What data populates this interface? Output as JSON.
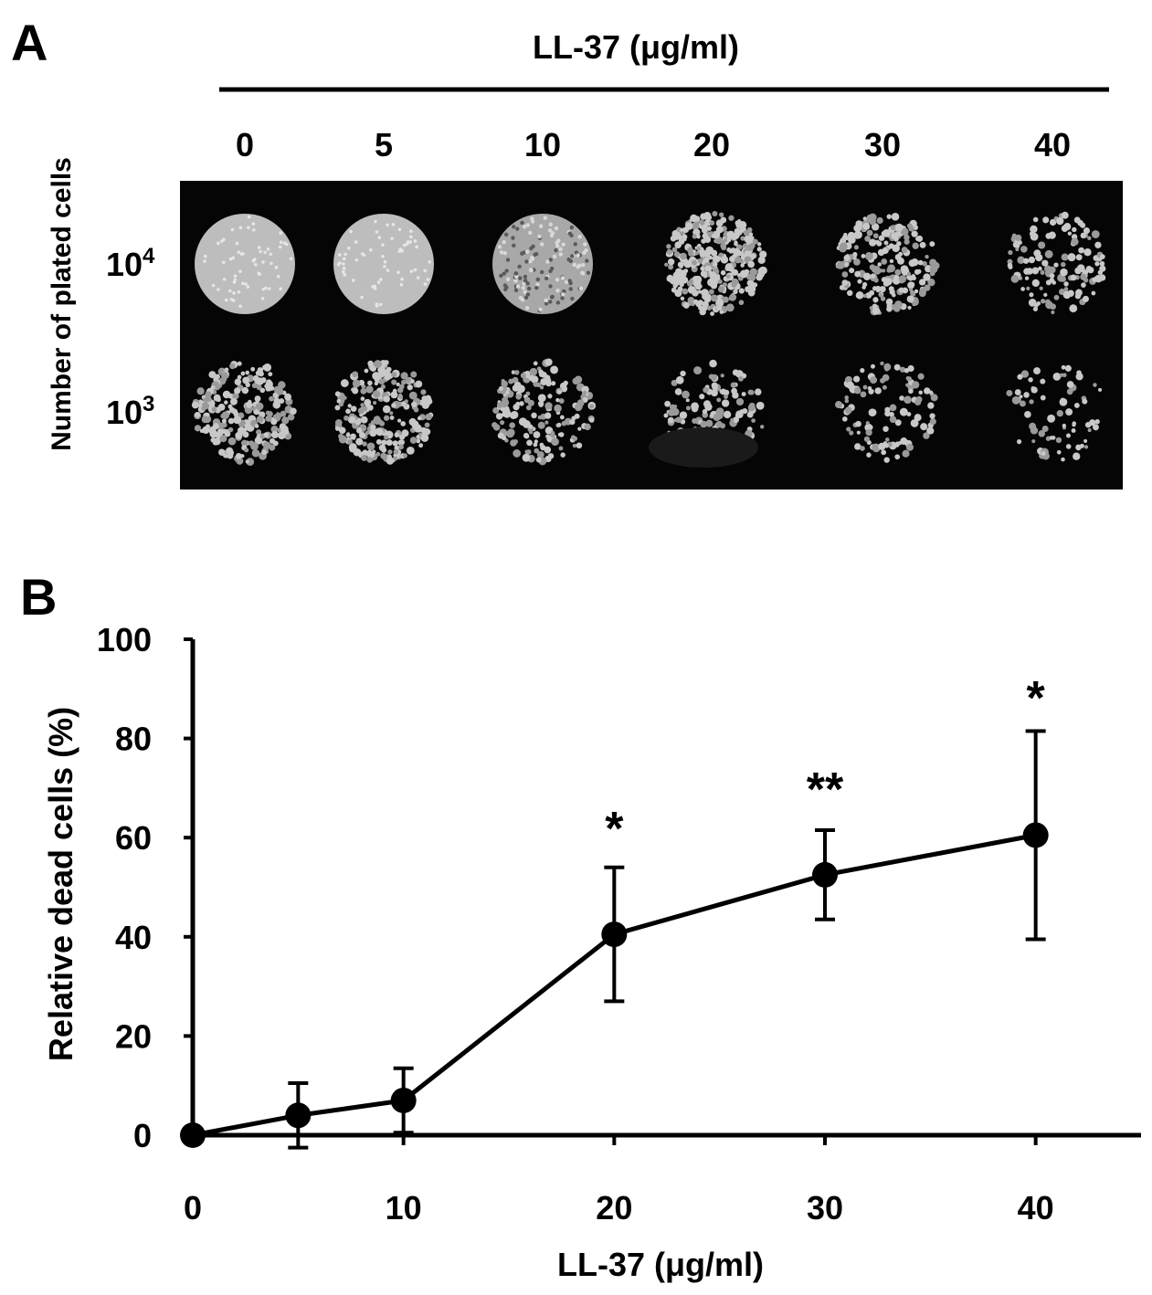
{
  "panel_a": {
    "letter": "A",
    "header_label": "LL-37 (μg/ml)",
    "concentrations": [
      "0",
      "5",
      "10",
      "20",
      "30",
      "40"
    ],
    "row_axis_label": "Number of plated cells",
    "rows": [
      {
        "base": "10",
        "exp": "4"
      },
      {
        "base": "10",
        "exp": "3"
      }
    ],
    "plate_image": "spot-assay-photo",
    "colony_density": [
      [
        1.0,
        0.98,
        0.85,
        0.55,
        0.35,
        0.22
      ],
      [
        0.38,
        0.4,
        0.3,
        0.22,
        0.18,
        0.12
      ]
    ]
  },
  "chart_data": {
    "type": "line",
    "panel_letter": "B",
    "title": "",
    "xlabel": "LL-37 (μg/ml)",
    "ylabel": "Relative dead cells (%)",
    "xlim": [
      0,
      45
    ],
    "ylim": [
      0,
      100
    ],
    "xticks": [
      0,
      10,
      20,
      30,
      40
    ],
    "yticks": [
      0,
      20,
      40,
      60,
      80,
      100
    ],
    "grid": false,
    "series": [
      {
        "x": [
          0,
          5,
          10,
          20,
          30,
          40
        ],
        "y": [
          0,
          4,
          7,
          40.5,
          52.5,
          60.5
        ],
        "error": [
          0,
          6.5,
          6.5,
          13.5,
          9,
          21
        ]
      }
    ],
    "annotations": [
      {
        "x": 20,
        "text": "*"
      },
      {
        "x": 30,
        "text": "**"
      },
      {
        "x": 40,
        "text": "*"
      }
    ]
  }
}
